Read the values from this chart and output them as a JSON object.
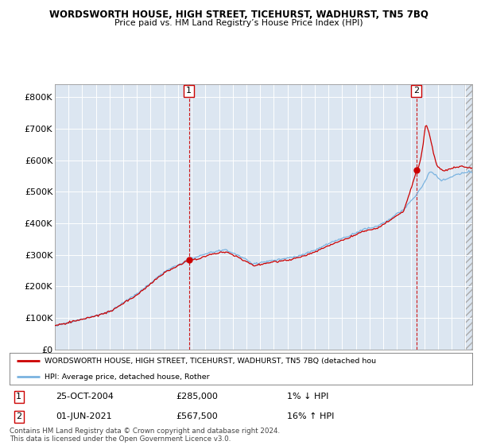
{
  "title1": "WORDSWORTH HOUSE, HIGH STREET, TICEHURST, WADHURST, TN5 7BQ",
  "title2": "Price paid vs. HM Land Registry’s House Price Index (HPI)",
  "bg_color": "#dce6f1",
  "ylim": [
    0,
    840000
  ],
  "yticks": [
    0,
    100000,
    200000,
    300000,
    400000,
    500000,
    600000,
    700000,
    800000
  ],
  "ytick_labels": [
    "£0",
    "£100K",
    "£200K",
    "£300K",
    "£400K",
    "£500K",
    "£600K",
    "£700K",
    "£800K"
  ],
  "sale1_year": 2004.792,
  "sale1_value": 285000,
  "sale2_year": 2021.417,
  "sale2_value": 567500,
  "legend_line1": "WORDSWORTH HOUSE, HIGH STREET, TICEHURST, WADHURST, TN5 7BQ (detached hou",
  "legend_line2": "HPI: Average price, detached house, Rother",
  "ann1_date": "25-OCT-2004",
  "ann1_price": "£285,000",
  "ann1_hpi": "1% ↓ HPI",
  "ann2_date": "01-JUN-2021",
  "ann2_price": "£567,500",
  "ann2_hpi": "16% ↑ HPI",
  "footer": "Contains HM Land Registry data © Crown copyright and database right 2024.\nThis data is licensed under the Open Government Licence v3.0.",
  "hpi_color": "#7ab3e0",
  "sale_color": "#cc0000",
  "xmin": 1995,
  "xmax": 2025.5
}
